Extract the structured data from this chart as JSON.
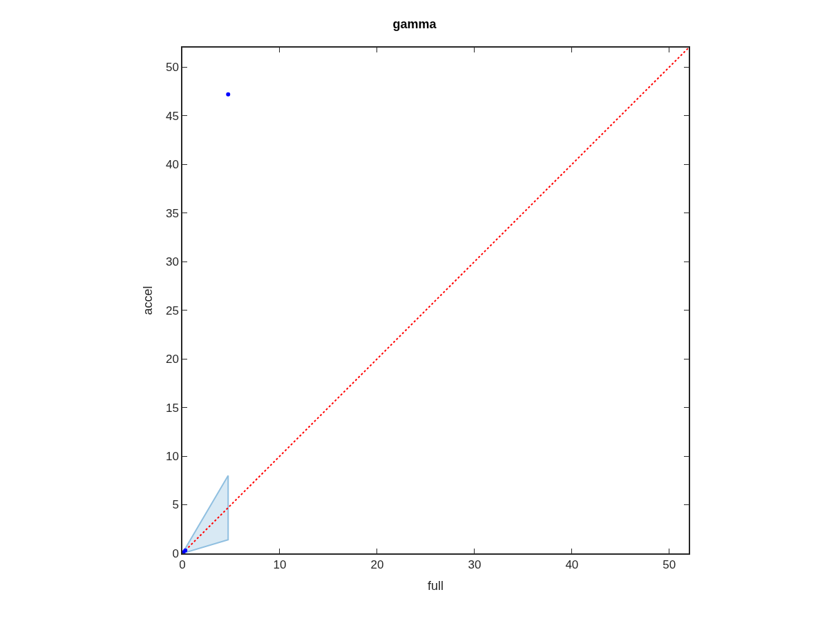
{
  "chart_data": {
    "type": "scatter",
    "title": "gamma",
    "xlabel": "full",
    "ylabel": "accel",
    "xlim": [
      0,
      52
    ],
    "ylim": [
      0,
      52
    ],
    "xticks": [
      0,
      10,
      20,
      30,
      40,
      50
    ],
    "yticks": [
      0,
      5,
      10,
      15,
      20,
      25,
      30,
      35,
      40,
      45,
      50
    ],
    "series": [
      {
        "type": "line",
        "color": "#8fbfe0",
        "x": [
          0,
          4.7
        ],
        "values": [
          null,
          null
        ],
        "lower": [
          0,
          1.4
        ],
        "upper": [
          0,
          8.0
        ]
      },
      {
        "type": "line",
        "color": "#ff0000",
        "line_style": "dotted",
        "marker": "none",
        "x": [
          0,
          52
        ],
        "values": [
          0,
          52
        ]
      },
      {
        "color": "#0000ff",
        "marker": "circle",
        "x": [
          0.1,
          0.3,
          4.7
        ],
        "values": [
          0.1,
          0.3,
          47.2
        ]
      }
    ]
  }
}
